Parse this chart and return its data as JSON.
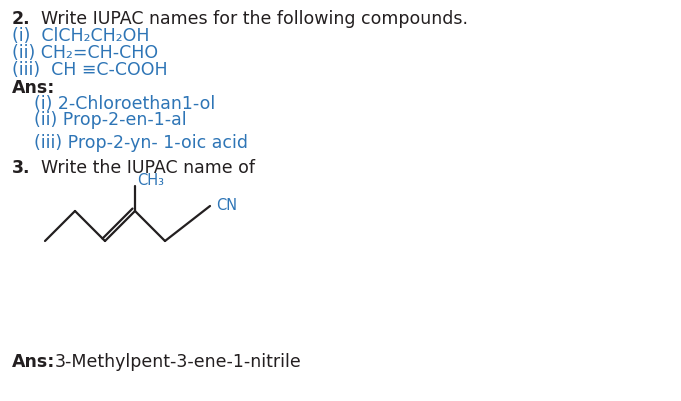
{
  "bg_color": "#ffffff",
  "text_color": "#231f20",
  "blue_color": "#2e75b6",
  "black_color": "#231f20",
  "q2_num": "2.",
  "q2_rest": "  Write IUPAC names for the following compounds.",
  "q2_i": "(i)  ClCH₂CH₂OH",
  "q2_ii": "(ii) CH₂=CH-CHO",
  "q2_iii": "(iii)  CH ≡C-COOH",
  "ans_label": "Ans:",
  "ans_i": "    (i) 2-Chloroethan1-ol",
  "ans_ii": "    (ii) Prop-2-en-1-al",
  "ans_iii": "    (iii) Prop-2-yn- 1-oic acid",
  "q3_num": "3.",
  "q3_rest": "  Write the IUPAC name of",
  "ch3_label": "CH₃",
  "cn_label": "CN",
  "ans3_label": "Ans:",
  "ans3_text": "3-Methylpent-3-ene-1-nitrile",
  "fs": 12.5,
  "fs_struct": 10.5
}
